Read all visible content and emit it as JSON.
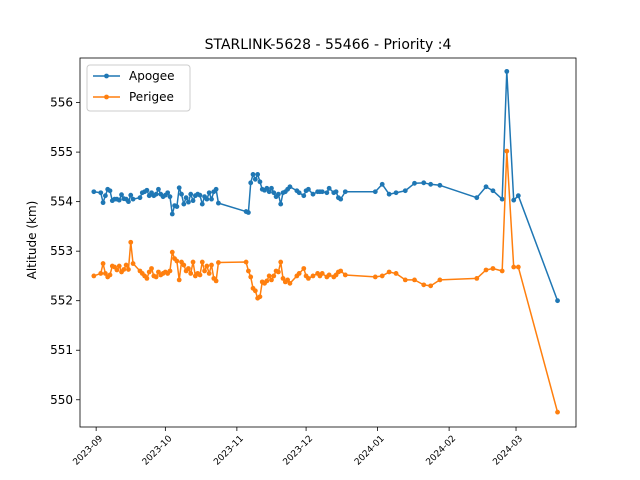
{
  "chart_data": {
    "type": "line",
    "title": "STARLINK-5628 - 55466 - Priority :4",
    "xlabel": "",
    "ylabel": "Altitude (km)",
    "xlim": [
      "2023-08-25",
      "2024-03-27"
    ],
    "ylim": [
      549.45,
      556.9
    ],
    "x_ticks": [
      "2023-09",
      "2023-10",
      "2023-11",
      "2023-12",
      "2024-01",
      "2024-02",
      "2024-03"
    ],
    "y_ticks": [
      550,
      551,
      552,
      553,
      554,
      555,
      556
    ],
    "legend_position": "upper left",
    "grid": false,
    "series": [
      {
        "name": "Apogee",
        "color": "#1f77b4",
        "points": [
          [
            "2023-08-31",
            554.2
          ],
          [
            "2023-09-03",
            554.18
          ],
          [
            "2023-09-04",
            553.98
          ],
          [
            "2023-09-05",
            554.12
          ],
          [
            "2023-09-06",
            554.25
          ],
          [
            "2023-09-07",
            554.22
          ],
          [
            "2023-09-08",
            554.02
          ],
          [
            "2023-09-09",
            554.05
          ],
          [
            "2023-09-10",
            554.05
          ],
          [
            "2023-09-11",
            554.03
          ],
          [
            "2023-09-12",
            554.14
          ],
          [
            "2023-09-13",
            554.06
          ],
          [
            "2023-09-14",
            554.05
          ],
          [
            "2023-09-15",
            554.0
          ],
          [
            "2023-09-16",
            554.13
          ],
          [
            "2023-09-17",
            554.05
          ],
          [
            "2023-09-20",
            554.08
          ],
          [
            "2023-09-21",
            554.18
          ],
          [
            "2023-09-22",
            554.2
          ],
          [
            "2023-09-23",
            554.23
          ],
          [
            "2023-09-24",
            554.12
          ],
          [
            "2023-09-25",
            554.18
          ],
          [
            "2023-09-26",
            554.12
          ],
          [
            "2023-09-27",
            554.15
          ],
          [
            "2023-09-28",
            554.25
          ],
          [
            "2023-09-29",
            554.15
          ],
          [
            "2023-09-30",
            554.1
          ],
          [
            "2023-10-01",
            554.13
          ],
          [
            "2023-10-02",
            554.18
          ],
          [
            "2023-10-03",
            554.1
          ],
          [
            "2023-10-04",
            553.75
          ],
          [
            "2023-10-05",
            553.92
          ],
          [
            "2023-10-06",
            553.9
          ],
          [
            "2023-10-07",
            554.28
          ],
          [
            "2023-10-08",
            554.15
          ],
          [
            "2023-10-09",
            553.95
          ],
          [
            "2023-10-10",
            554.08
          ],
          [
            "2023-10-11",
            553.99
          ],
          [
            "2023-10-12",
            554.15
          ],
          [
            "2023-10-13",
            554.02
          ],
          [
            "2023-10-14",
            554.12
          ],
          [
            "2023-10-15",
            554.15
          ],
          [
            "2023-10-16",
            554.13
          ],
          [
            "2023-10-17",
            553.95
          ],
          [
            "2023-10-18",
            554.1
          ],
          [
            "2023-10-19",
            554.05
          ],
          [
            "2023-10-20",
            554.18
          ],
          [
            "2023-10-21",
            554.05
          ],
          [
            "2023-10-22",
            554.2
          ],
          [
            "2023-10-23",
            554.25
          ],
          [
            "2023-10-24",
            553.97
          ],
          [
            "2023-11-05",
            553.8
          ],
          [
            "2023-11-06",
            553.78
          ],
          [
            "2023-11-07",
            554.38
          ],
          [
            "2023-11-08",
            554.55
          ],
          [
            "2023-11-09",
            554.45
          ],
          [
            "2023-11-10",
            554.55
          ],
          [
            "2023-11-11",
            554.4
          ],
          [
            "2023-11-12",
            554.25
          ],
          [
            "2023-11-13",
            554.23
          ],
          [
            "2023-11-14",
            554.27
          ],
          [
            "2023-11-15",
            554.2
          ],
          [
            "2023-11-16",
            554.27
          ],
          [
            "2023-11-17",
            554.18
          ],
          [
            "2023-11-18",
            554.1
          ],
          [
            "2023-11-19",
            554.15
          ],
          [
            "2023-11-20",
            553.95
          ],
          [
            "2023-11-21",
            554.18
          ],
          [
            "2023-11-22",
            554.2
          ],
          [
            "2023-11-23",
            554.25
          ],
          [
            "2023-11-24",
            554.3
          ],
          [
            "2023-11-27",
            554.22
          ],
          [
            "2023-11-28",
            554.18
          ],
          [
            "2023-11-30",
            554.12
          ],
          [
            "2023-12-01",
            554.22
          ],
          [
            "2023-12-02",
            554.25
          ],
          [
            "2023-12-04",
            554.15
          ],
          [
            "2023-12-06",
            554.2
          ],
          [
            "2023-12-07",
            554.2
          ],
          [
            "2023-12-08",
            554.2
          ],
          [
            "2023-12-10",
            554.18
          ],
          [
            "2023-12-11",
            554.27
          ],
          [
            "2023-12-13",
            554.18
          ],
          [
            "2023-12-14",
            554.2
          ],
          [
            "2023-12-15",
            554.08
          ],
          [
            "2023-12-16",
            554.05
          ],
          [
            "2023-12-18",
            554.2
          ],
          [
            "2023-12-31",
            554.2
          ],
          [
            "2024-01-03",
            554.35
          ],
          [
            "2024-01-06",
            554.15
          ],
          [
            "2024-01-09",
            554.18
          ],
          [
            "2024-01-13",
            554.22
          ],
          [
            "2024-01-17",
            554.37
          ],
          [
            "2024-01-21",
            554.38
          ],
          [
            "2024-01-24",
            554.35
          ],
          [
            "2024-01-28",
            554.33
          ],
          [
            "2024-02-13",
            554.08
          ],
          [
            "2024-02-17",
            554.3
          ],
          [
            "2024-02-20",
            554.22
          ],
          [
            "2024-02-24",
            554.05
          ],
          [
            "2024-02-26",
            556.63
          ],
          [
            "2024-02-29",
            554.03
          ],
          [
            "2024-03-02",
            554.12
          ],
          [
            "2024-03-19",
            552.0
          ]
        ]
      },
      {
        "name": "Perigee",
        "color": "#ff7f0e",
        "points": [
          [
            "2023-08-31",
            552.5
          ],
          [
            "2023-09-03",
            552.55
          ],
          [
            "2023-09-04",
            552.75
          ],
          [
            "2023-09-05",
            552.55
          ],
          [
            "2023-09-06",
            552.48
          ],
          [
            "2023-09-07",
            552.52
          ],
          [
            "2023-09-08",
            552.7
          ],
          [
            "2023-09-09",
            552.68
          ],
          [
            "2023-09-10",
            552.62
          ],
          [
            "2023-09-11",
            552.7
          ],
          [
            "2023-09-12",
            552.58
          ],
          [
            "2023-09-13",
            552.63
          ],
          [
            "2023-09-14",
            552.72
          ],
          [
            "2023-09-15",
            552.63
          ],
          [
            "2023-09-16",
            553.18
          ],
          [
            "2023-09-17",
            552.75
          ],
          [
            "2023-09-20",
            552.6
          ],
          [
            "2023-09-21",
            552.55
          ],
          [
            "2023-09-22",
            552.5
          ],
          [
            "2023-09-23",
            552.45
          ],
          [
            "2023-09-24",
            552.58
          ],
          [
            "2023-09-25",
            552.65
          ],
          [
            "2023-09-26",
            552.5
          ],
          [
            "2023-09-27",
            552.48
          ],
          [
            "2023-09-28",
            552.58
          ],
          [
            "2023-09-29",
            552.52
          ],
          [
            "2023-09-30",
            552.55
          ],
          [
            "2023-10-01",
            552.58
          ],
          [
            "2023-10-02",
            552.55
          ],
          [
            "2023-10-03",
            552.6
          ],
          [
            "2023-10-04",
            552.98
          ],
          [
            "2023-10-05",
            552.85
          ],
          [
            "2023-10-06",
            552.8
          ],
          [
            "2023-10-07",
            552.42
          ],
          [
            "2023-10-08",
            552.78
          ],
          [
            "2023-10-09",
            552.72
          ],
          [
            "2023-10-10",
            552.6
          ],
          [
            "2023-10-11",
            552.65
          ],
          [
            "2023-10-12",
            552.55
          ],
          [
            "2023-10-13",
            552.78
          ],
          [
            "2023-10-14",
            552.5
          ],
          [
            "2023-10-15",
            552.55
          ],
          [
            "2023-10-16",
            552.52
          ],
          [
            "2023-10-17",
            552.78
          ],
          [
            "2023-10-18",
            552.6
          ],
          [
            "2023-10-19",
            552.7
          ],
          [
            "2023-10-20",
            552.55
          ],
          [
            "2023-10-21",
            552.72
          ],
          [
            "2023-10-22",
            552.45
          ],
          [
            "2023-10-23",
            552.4
          ],
          [
            "2023-10-24",
            552.77
          ],
          [
            "2023-11-05",
            552.78
          ],
          [
            "2023-11-06",
            552.6
          ],
          [
            "2023-11-07",
            552.48
          ],
          [
            "2023-11-08",
            552.25
          ],
          [
            "2023-11-09",
            552.2
          ],
          [
            "2023-11-10",
            552.05
          ],
          [
            "2023-11-11",
            552.08
          ],
          [
            "2023-11-12",
            552.38
          ],
          [
            "2023-11-13",
            552.35
          ],
          [
            "2023-11-14",
            552.4
          ],
          [
            "2023-11-15",
            552.5
          ],
          [
            "2023-11-16",
            552.42
          ],
          [
            "2023-11-17",
            552.5
          ],
          [
            "2023-11-18",
            552.6
          ],
          [
            "2023-11-19",
            552.58
          ],
          [
            "2023-11-20",
            552.78
          ],
          [
            "2023-11-21",
            552.45
          ],
          [
            "2023-11-22",
            552.38
          ],
          [
            "2023-11-23",
            552.42
          ],
          [
            "2023-11-24",
            552.35
          ],
          [
            "2023-11-27",
            552.5
          ],
          [
            "2023-11-28",
            552.55
          ],
          [
            "2023-11-30",
            552.65
          ],
          [
            "2023-12-01",
            552.5
          ],
          [
            "2023-12-02",
            552.45
          ],
          [
            "2023-12-04",
            552.5
          ],
          [
            "2023-12-06",
            552.55
          ],
          [
            "2023-12-07",
            552.5
          ],
          [
            "2023-12-08",
            552.55
          ],
          [
            "2023-12-10",
            552.48
          ],
          [
            "2023-12-11",
            552.52
          ],
          [
            "2023-12-13",
            552.48
          ],
          [
            "2023-12-14",
            552.52
          ],
          [
            "2023-12-15",
            552.58
          ],
          [
            "2023-12-16",
            552.6
          ],
          [
            "2023-12-18",
            552.52
          ],
          [
            "2023-12-31",
            552.48
          ],
          [
            "2024-01-03",
            552.5
          ],
          [
            "2024-01-06",
            552.58
          ],
          [
            "2024-01-09",
            552.55
          ],
          [
            "2024-01-13",
            552.42
          ],
          [
            "2024-01-17",
            552.42
          ],
          [
            "2024-01-21",
            552.32
          ],
          [
            "2024-01-24",
            552.3
          ],
          [
            "2024-01-28",
            552.42
          ],
          [
            "2024-02-13",
            552.45
          ],
          [
            "2024-02-17",
            552.62
          ],
          [
            "2024-02-20",
            552.65
          ],
          [
            "2024-02-24",
            552.6
          ],
          [
            "2024-02-26",
            555.02
          ],
          [
            "2024-02-29",
            552.68
          ],
          [
            "2024-03-02",
            552.68
          ],
          [
            "2024-03-19",
            549.75
          ]
        ]
      }
    ]
  }
}
